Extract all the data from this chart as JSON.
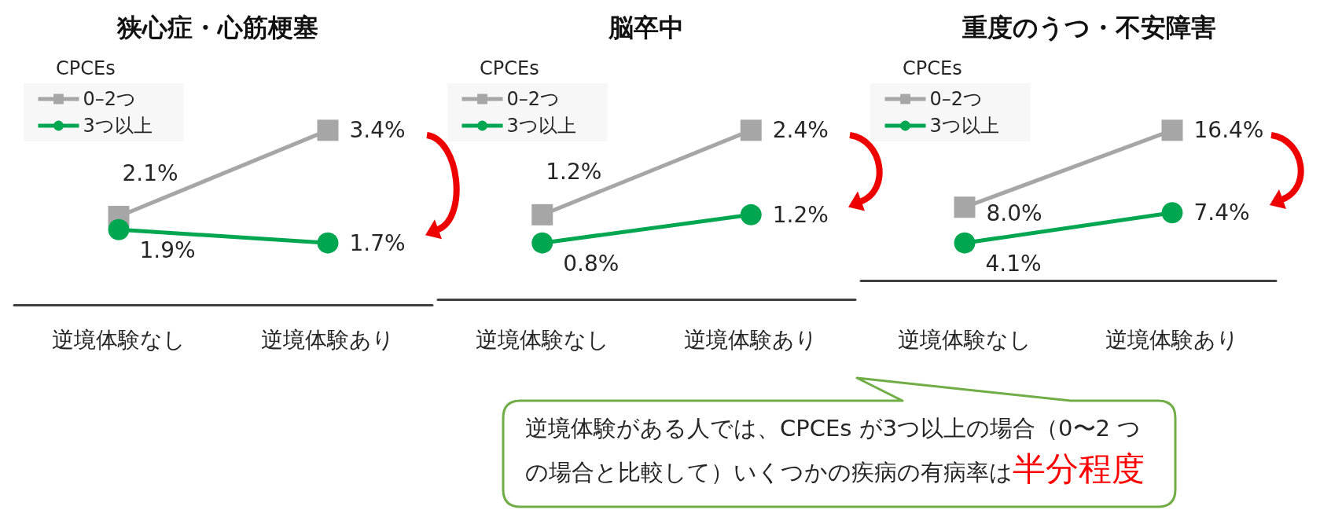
{
  "chart_data": [
    {
      "type": "line",
      "title": "狭心症・心筋梗塞",
      "categories": [
        "逆境体験なし",
        "逆境体験あり"
      ],
      "legend_title": "CPCEs",
      "legend": "top left",
      "tick_labels": "x",
      "series": [
        {
          "name": "0–2つ",
          "color": "#a6a6a6",
          "marker": "square",
          "values": [
            2.1,
            3.4
          ],
          "value_labels": [
            "2.1%",
            "3.4%"
          ]
        },
        {
          "name": "3つ以上",
          "color": "#00a650",
          "marker": "circle",
          "values": [
            1.9,
            1.7
          ],
          "value_labels": [
            "1.9%",
            "1.7%"
          ]
        }
      ]
    },
    {
      "type": "line",
      "title": "脳卒中",
      "categories": [
        "逆境体験なし",
        "逆境体験あり"
      ],
      "legend_title": "CPCEs",
      "legend": "top left",
      "tick_labels": "x",
      "series": [
        {
          "name": "0–2つ",
          "color": "#a6a6a6",
          "marker": "square",
          "values": [
            1.2,
            2.4
          ],
          "value_labels": [
            "1.2%",
            "2.4%"
          ]
        },
        {
          "name": "3つ以上",
          "color": "#00a650",
          "marker": "circle",
          "values": [
            0.8,
            1.2
          ],
          "value_labels": [
            "0.8%",
            "1.2%"
          ]
        }
      ],
      "annotations": [
        "逆境体験がある人では、CPCEs が3つ以上の場合（0〜2 つの場合と比較して）いくつかの疾病の有病率は",
        "半分程度"
      ]
    },
    {
      "type": "line",
      "title": "重度のうつ・不安障害",
      "categories": [
        "逆境体験なし",
        "逆境体験あり"
      ],
      "legend_title": "CPCEs",
      "legend": "top left",
      "tick_labels": "x",
      "series": [
        {
          "name": "0–2つ",
          "color": "#a6a6a6",
          "marker": "square",
          "values": [
            8.0,
            16.4
          ],
          "value_labels": [
            "8.0%",
            "16.4%"
          ]
        },
        {
          "name": "3つ以上",
          "color": "#00a650",
          "marker": "circle",
          "values": [
            4.1,
            7.4
          ],
          "value_labels": [
            "4.1%",
            "7.4%"
          ]
        }
      ]
    }
  ]
}
